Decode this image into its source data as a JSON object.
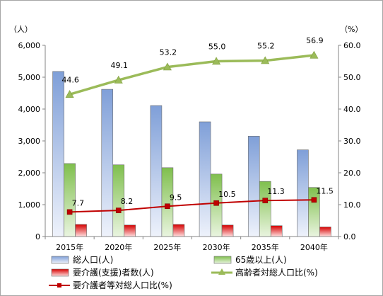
{
  "chart_data": {
    "type": "bar",
    "categories": [
      "2015年",
      "2020年",
      "2025年",
      "2030年",
      "2035年",
      "2040年"
    ],
    "left_unit": "（人）",
    "right_unit": "（%）",
    "left_axis": {
      "min": 0,
      "max": 6000,
      "step": 1000,
      "ticks": [
        "0",
        "1,000",
        "2,000",
        "3,000",
        "4,000",
        "5,000",
        "6,000"
      ]
    },
    "right_axis": {
      "min": 0,
      "max": 60,
      "step": 10,
      "ticks": [
        "0.0",
        "10.0",
        "20.0",
        "30.0",
        "40.0",
        "50.0",
        "60.0"
      ]
    },
    "grid": false,
    "legend_position": "bottom",
    "series": [
      {
        "name": "総人口(人)",
        "kind": "bar",
        "axis": "left",
        "color": "#8eaadb",
        "values": [
          5180,
          4620,
          4110,
          3600,
          3150,
          2720
        ]
      },
      {
        "name": "65歳以上(人)",
        "kind": "bar",
        "axis": "left",
        "color": "#8fc45c",
        "values": [
          2290,
          2250,
          2160,
          1960,
          1730,
          1540
        ]
      },
      {
        "name": "要介護(支援)者数(人)",
        "kind": "bar",
        "axis": "left",
        "color": "#e0101a",
        "values": [
          380,
          360,
          380,
          360,
          340,
          300
        ]
      },
      {
        "name": "高齢者対総人口比(%)",
        "kind": "line",
        "axis": "right",
        "color": "#9bbb59",
        "marker": "triangle",
        "values": [
          44.6,
          49.1,
          53.2,
          55.0,
          55.2,
          56.9
        ],
        "labels": [
          "44.6",
          "49.1",
          "53.2",
          "55.0",
          "55.2",
          "56.9"
        ]
      },
      {
        "name": "要介護者等対総人口比(%)",
        "kind": "line",
        "axis": "right",
        "color": "#c00000",
        "marker": "square",
        "values": [
          7.7,
          8.2,
          9.5,
          10.5,
          11.3,
          11.5
        ],
        "labels": [
          "7.7",
          "8.2",
          "9.5",
          "10.5",
          "11.3",
          "11.5"
        ]
      }
    ]
  }
}
